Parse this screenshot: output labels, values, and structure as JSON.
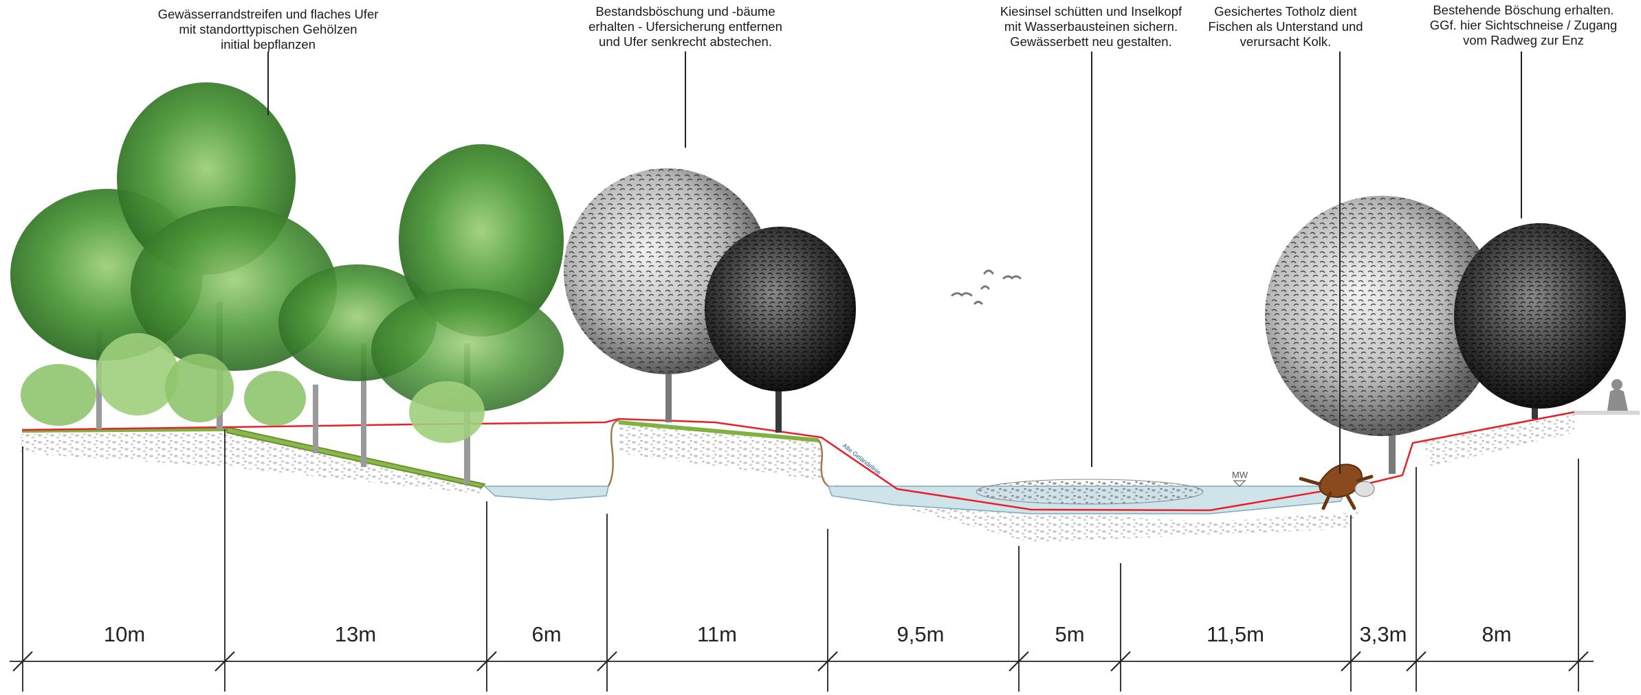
{
  "annotations": [
    {
      "id": "riparian-strip",
      "lines": [
        "Gewässerrandstreifen und flaches Ufer",
        "mit standorttypischen Gehölzen",
        "initial bepflanzen"
      ]
    },
    {
      "id": "existing-slope",
      "lines": [
        "Bestandsböschung und -bäume",
        "erhalten - Ufersicherung entfernen",
        "und Ufer senkrecht abstechen."
      ]
    },
    {
      "id": "gravel-island",
      "lines": [
        "Kiesinsel schütten und Inselkopf",
        "mit Wasserbausteinen sichern.",
        "Gewässerbett neu gestalten."
      ]
    },
    {
      "id": "deadwood",
      "lines": [
        "Gesichertes Totholz dient",
        "Fischen als Unterstand und",
        "verursacht Kolk."
      ]
    },
    {
      "id": "existing-bank",
      "lines": [
        "Bestehende Böschung erhalten.",
        "GGf. hier Sichtschneise / Zugang",
        "vom Radweg zur Enz"
      ]
    }
  ],
  "dimensions": [
    "10m",
    "13m",
    "6m",
    "11m",
    "9,5m",
    "5m",
    "11,5m",
    "3,3m",
    "8m"
  ],
  "water_level_label": "MW",
  "slope_mark_label": "Alte Geländelinie",
  "colors": {
    "terrain_line": "#e8202a",
    "water": "#cfe3ea",
    "grass": "#7fb241",
    "tree_green": "#4e9a3a",
    "tree_grey": "#8a8a8a",
    "tree_dark": "#2e2e2e"
  },
  "icons": [
    "deciduous-tree-icon",
    "shrub-icon",
    "bird-icon",
    "deadwood-stump-icon",
    "person-icon"
  ]
}
